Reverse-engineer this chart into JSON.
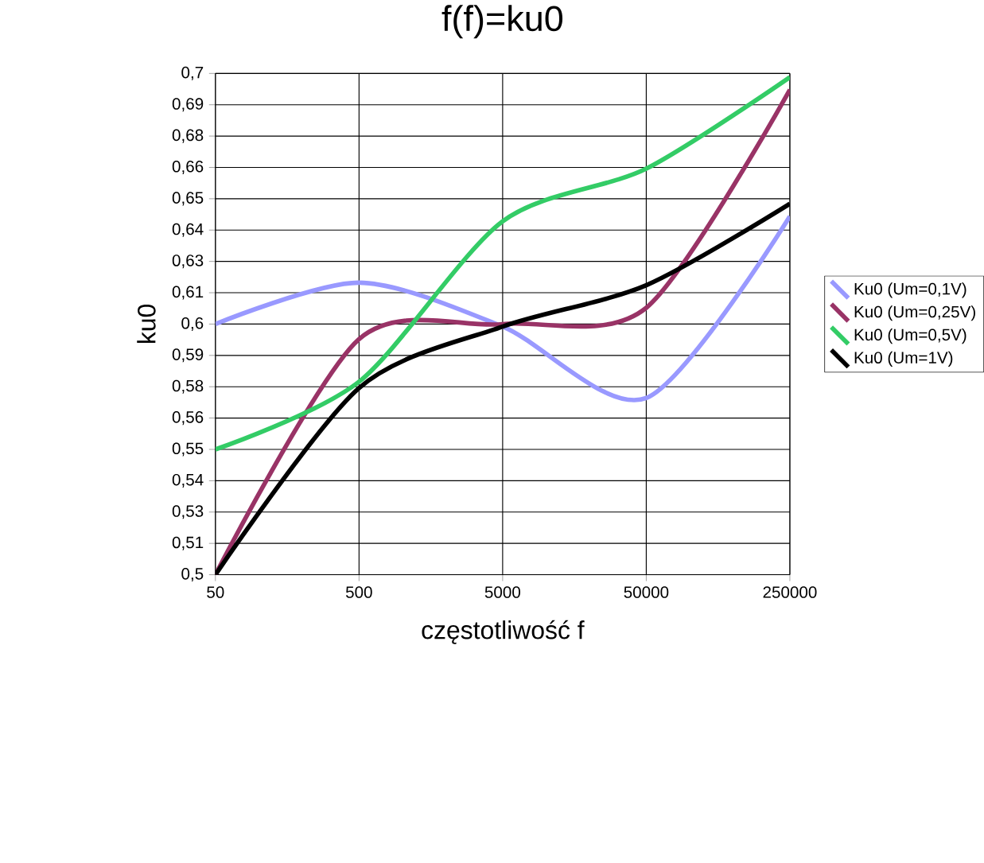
{
  "chart_data": {
    "type": "line",
    "title": "f(f)=ku0",
    "xlabel": "częstotliwość f",
    "ylabel": "ku0",
    "categories": [
      "50",
      "500",
      "5000",
      "50000",
      "250000"
    ],
    "series": [
      {
        "name": "Ku0 (Um=0,1V)",
        "color": "#9999ff",
        "values": [
          0.6,
          0.6165,
          0.599,
          0.5705,
          0.643
        ]
      },
      {
        "name": "Ku0 (Um=0,25V)",
        "color": "#993366",
        "values": [
          0.5,
          0.594,
          0.6,
          0.6065,
          0.6935
        ]
      },
      {
        "name": "Ku0 (Um=0,5V)",
        "color": "#33cc66",
        "values": [
          0.55,
          0.577,
          0.641,
          0.662,
          0.6985
        ]
      },
      {
        "name": "Ku0 (Um=1V)",
        "color": "#000000",
        "values": [
          0.5,
          0.5745,
          0.599,
          0.6155,
          0.648
        ]
      }
    ],
    "ylim": [
      0.5,
      0.7
    ],
    "yticks": [
      {
        "value": 0.5,
        "label": "0,5"
      },
      {
        "value": 0.5125,
        "label": "0,51"
      },
      {
        "value": 0.525,
        "label": "0,53"
      },
      {
        "value": 0.5375,
        "label": "0,54"
      },
      {
        "value": 0.55,
        "label": "0,55"
      },
      {
        "value": 0.5625,
        "label": "0,56"
      },
      {
        "value": 0.575,
        "label": "0,58"
      },
      {
        "value": 0.5875,
        "label": "0,59"
      },
      {
        "value": 0.6,
        "label": "0,6"
      },
      {
        "value": 0.6125,
        "label": "0,61"
      },
      {
        "value": 0.625,
        "label": "0,63"
      },
      {
        "value": 0.6375,
        "label": "0,64"
      },
      {
        "value": 0.65,
        "label": "0,65"
      },
      {
        "value": 0.6625,
        "label": "0,66"
      },
      {
        "value": 0.675,
        "label": "0,68"
      },
      {
        "value": 0.6875,
        "label": "0,69"
      },
      {
        "value": 0.7,
        "label": "0,7"
      }
    ],
    "grid": true,
    "legend": "right",
    "marker": "none",
    "line_style": "solid"
  }
}
